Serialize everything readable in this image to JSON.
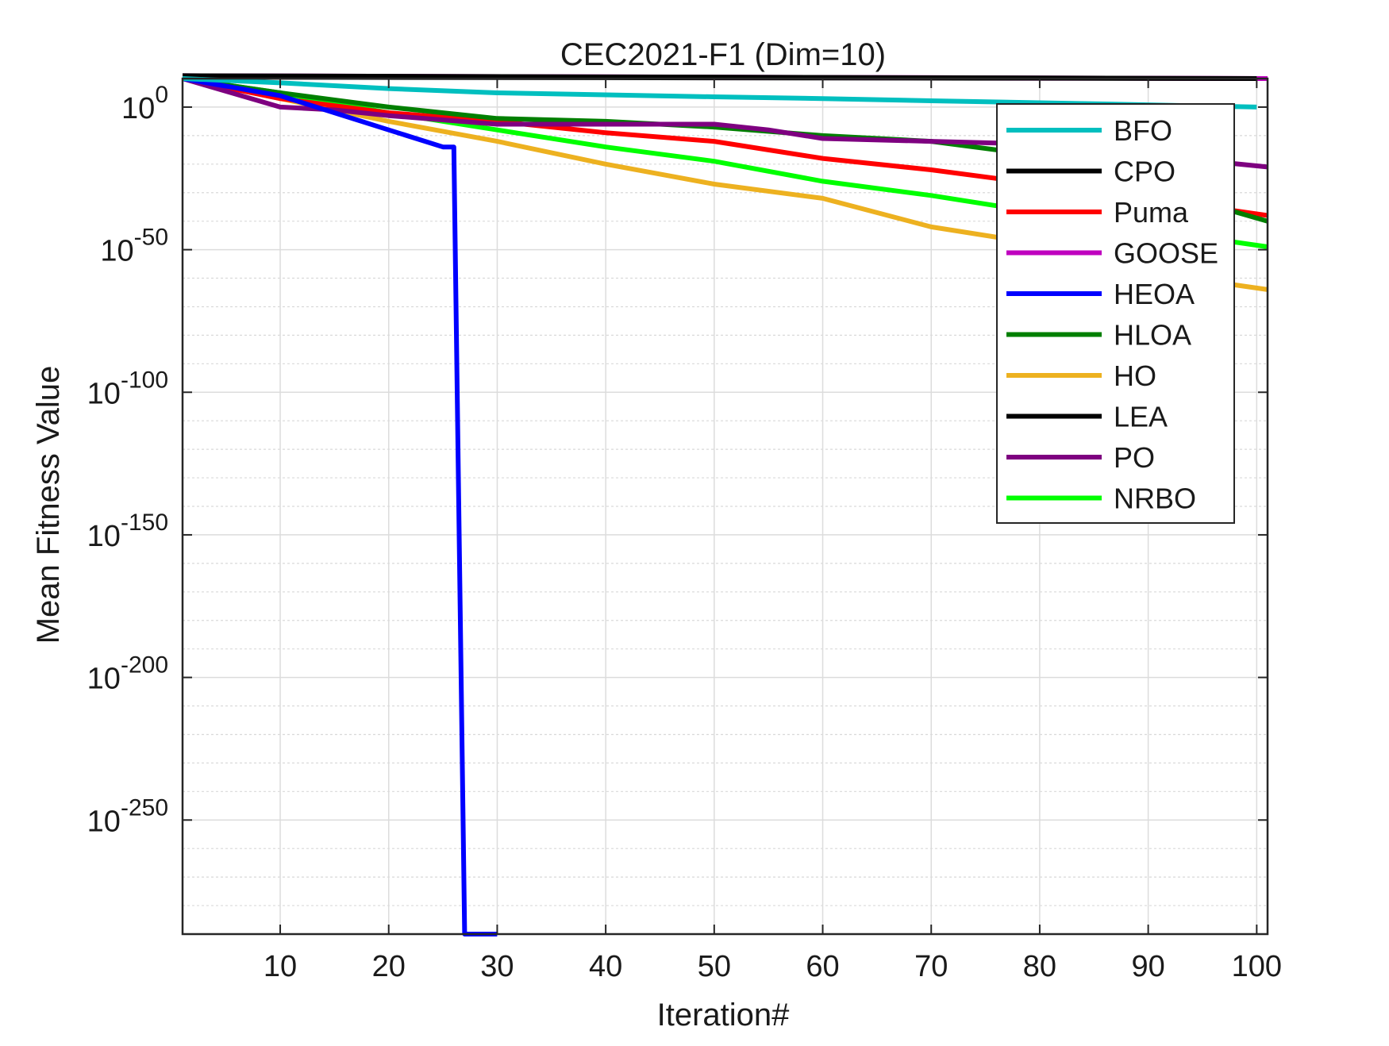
{
  "chart_data": {
    "type": "line",
    "title": "CEC2021-F1 (Dim=10)",
    "xlabel": "Iteration#",
    "ylabel": "Mean Fitness Value",
    "yscale": "log",
    "xlim": [
      1,
      101
    ],
    "ylim_exponent": [
      -290,
      10
    ],
    "x_ticks": [
      10,
      20,
      30,
      40,
      50,
      60,
      70,
      80,
      90,
      100
    ],
    "y_ticks": [
      {
        "exp": 0,
        "base": "10",
        "sup": "0"
      },
      {
        "exp": -50,
        "base": "10",
        "sup": "-50"
      },
      {
        "exp": -100,
        "base": "10",
        "sup": "-100"
      },
      {
        "exp": -150,
        "base": "10",
        "sup": "-150"
      },
      {
        "exp": -200,
        "base": "10",
        "sup": "-200"
      },
      {
        "exp": -250,
        "base": "10",
        "sup": "-250"
      }
    ],
    "grid": true,
    "legend_position": "top-right",
    "series": [
      {
        "name": "BFO",
        "color": "#00BFBF",
        "x": [
          1,
          10,
          20,
          30,
          40,
          50,
          60,
          70,
          80,
          90,
          100
        ],
        "y_log10": [
          10,
          8.5,
          6.5,
          5,
          4.3,
          3.6,
          3,
          2.2,
          1.5,
          0.8,
          0
        ]
      },
      {
        "name": "CPO",
        "color": "#000000",
        "x": [
          1,
          100
        ],
        "y_log10": [
          11,
          10
        ]
      },
      {
        "name": "Puma",
        "color": "#FF0000",
        "x": [
          1,
          10,
          20,
          30,
          40,
          50,
          60,
          70,
          80,
          90,
          101
        ],
        "y_log10": [
          10,
          3,
          -2,
          -5,
          -9,
          -12,
          -18,
          -22,
          -27,
          -32,
          -38
        ]
      },
      {
        "name": "GOOSE",
        "color": "#BF00BF",
        "x": [
          1,
          101
        ],
        "y_log10": [
          11,
          10
        ]
      },
      {
        "name": "HEOA",
        "color": "#0000FF",
        "x": [
          1,
          10,
          15,
          20,
          25,
          26,
          27,
          28,
          30
        ],
        "y_log10": [
          10,
          4,
          -2,
          -8,
          -14,
          -14,
          -290,
          -290,
          -290
        ]
      },
      {
        "name": "HLOA",
        "color": "#007F00",
        "x": [
          1,
          10,
          20,
          30,
          40,
          50,
          60,
          70,
          80,
          90,
          101
        ],
        "y_log10": [
          10,
          5,
          0,
          -4,
          -5,
          -7,
          -10,
          -12,
          -17,
          -28,
          -40
        ]
      },
      {
        "name": "HO",
        "color": "#EDB120",
        "x": [
          1,
          10,
          20,
          30,
          40,
          50,
          60,
          70,
          80,
          90,
          101
        ],
        "y_log10": [
          10,
          3,
          -5,
          -12,
          -20,
          -27,
          -32,
          -42,
          -48,
          -58,
          -64
        ]
      },
      {
        "name": "LEA",
        "color": "#000000",
        "x": [
          1,
          101
        ],
        "y_log10": [
          10.5,
          10
        ]
      },
      {
        "name": "PO",
        "color": "#7E0080",
        "x": [
          1,
          10,
          15,
          20,
          30,
          40,
          50,
          55,
          60,
          70,
          80,
          101
        ],
        "y_log10": [
          10,
          0,
          -1,
          -3,
          -6,
          -6,
          -6,
          -8,
          -11,
          -12,
          -13,
          -21
        ]
      },
      {
        "name": "NRBO",
        "color": "#00FF00",
        "x": [
          1,
          10,
          20,
          30,
          40,
          50,
          60,
          70,
          80,
          90,
          101
        ],
        "y_log10": [
          10,
          5,
          -2,
          -8,
          -14,
          -19,
          -26,
          -31,
          -37,
          -43,
          -49
        ]
      }
    ]
  }
}
